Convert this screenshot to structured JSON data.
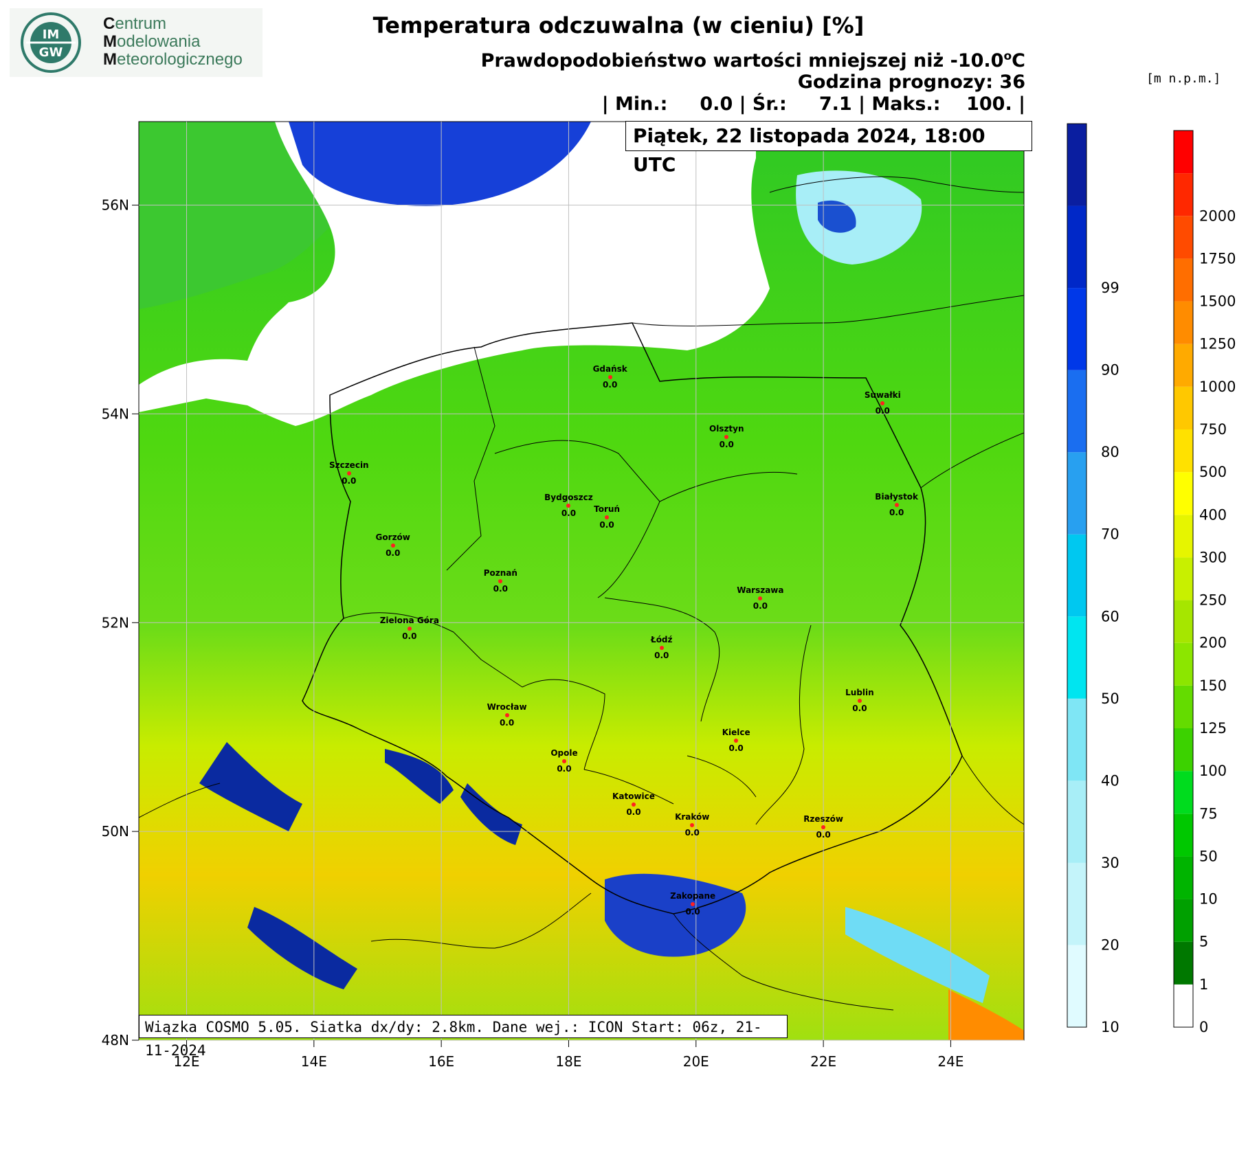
{
  "logo": {
    "badge_text_1": "IM",
    "badge_text_2": "GW",
    "line1_initial": "C",
    "line1_rest": "entrum",
    "line2_initial": "M",
    "line2_rest": "odelowania",
    "line3_initial": "M",
    "line3_rest": "eteorologicznego",
    "colors": {
      "background": "#f3f6f3",
      "text": "#3c7a5b",
      "badge": "#2f7a6a"
    }
  },
  "header": {
    "title": "Temperatura odczuwalna (w cieniu) [%]",
    "subtitle_prefix": "Prawdopodobieństwo wartości mniejszej niż -10.0",
    "subtitle_superscript": "o",
    "subtitle_suffix": "C",
    "forecast_hour": "Godzina prognozy: 36",
    "stats": "| Min.:     0.0 | Śr.:     7.1 | Maks.:    100. |",
    "date": "Piątek, 22 listopada 2024, 18:00 UTC"
  },
  "footer": "Wiązka COSMO 5.05. Siatka dx/dy: 2.8km. Dane wej.: ICON Start: 06z, 21-11-2024",
  "map": {
    "lat_range": [
      48,
      56.8
    ],
    "lon_range": [
      11.25,
      25.15
    ],
    "lat_labels": [
      "56N",
      "54N",
      "52N",
      "50N",
      "48N"
    ],
    "lon_labels": [
      "12E",
      "14E",
      "16E",
      "18E",
      "20E",
      "22E",
      "24E"
    ],
    "grid_color": "#c0c0c0",
    "cities": [
      {
        "name": "Gdańsk",
        "value": "0.0",
        "lon": 18.65,
        "lat": 54.35
      },
      {
        "name": "Suwałki",
        "value": "0.0",
        "lon": 22.93,
        "lat": 54.1
      },
      {
        "name": "Olsztyn",
        "value": "0.0",
        "lon": 20.48,
        "lat": 53.78
      },
      {
        "name": "Szczecin",
        "value": "0.0",
        "lon": 14.55,
        "lat": 53.43
      },
      {
        "name": "Bydgoszcz",
        "value": "0.0",
        "lon": 18.0,
        "lat": 53.12
      },
      {
        "name": "Toruń",
        "value": "0.0",
        "lon": 18.6,
        "lat": 53.01
      },
      {
        "name": "Białystok",
        "value": "0.0",
        "lon": 23.15,
        "lat": 53.13
      },
      {
        "name": "Gorzów",
        "value": "0.0",
        "lon": 15.24,
        "lat": 52.74
      },
      {
        "name": "Poznań",
        "value": "0.0",
        "lon": 16.93,
        "lat": 52.4
      },
      {
        "name": "Warszawa",
        "value": "0.0",
        "lon": 21.01,
        "lat": 52.23
      },
      {
        "name": "Zielona Góra",
        "value": "0.0",
        "lon": 15.5,
        "lat": 51.94
      },
      {
        "name": "Łódź",
        "value": "0.0",
        "lon": 19.46,
        "lat": 51.76
      },
      {
        "name": "Lublin",
        "value": "0.0",
        "lon": 22.57,
        "lat": 51.25
      },
      {
        "name": "Wrocław",
        "value": "0.0",
        "lon": 17.03,
        "lat": 51.11
      },
      {
        "name": "Kielce",
        "value": "0.0",
        "lon": 20.63,
        "lat": 50.87
      },
      {
        "name": "Opole",
        "value": "0.0",
        "lon": 17.93,
        "lat": 50.67
      },
      {
        "name": "Katowice",
        "value": "0.0",
        "lon": 19.02,
        "lat": 50.26
      },
      {
        "name": "Kraków",
        "value": "0.0",
        "lon": 19.94,
        "lat": 50.06
      },
      {
        "name": "Rzeszów",
        "value": "0.0",
        "lon": 22.0,
        "lat": 50.04
      },
      {
        "name": "Zakopane",
        "value": "0.0",
        "lon": 19.95,
        "lat": 49.3
      }
    ]
  },
  "colorbar_prob": {
    "labels": [
      "10",
      "20",
      "30",
      "40",
      "50",
      "60",
      "70",
      "80",
      "90",
      "99"
    ],
    "colors": [
      "#e0fbff",
      "#c4f4fa",
      "#a8eef7",
      "#7fe6f5",
      "#00e5f0",
      "#00c8f0",
      "#28a0f0",
      "#1a6ef0",
      "#0038e8",
      "#0028c8",
      "#0a1ea0"
    ]
  },
  "colorbar_height": {
    "unit": "[m n.p.m.]",
    "labels": [
      "0",
      "1",
      "5",
      "10",
      "50",
      "75",
      "100",
      "125",
      "150",
      "200",
      "250",
      "300",
      "400",
      "500",
      "750",
      "1000",
      "1250",
      "1500",
      "1750",
      "2000"
    ],
    "colors": [
      "#ffffff",
      "#007800",
      "#00a000",
      "#00b400",
      "#00c800",
      "#00dc1e",
      "#3cd200",
      "#64dc00",
      "#8ce600",
      "#a6e600",
      "#c8f000",
      "#e6f500",
      "#ffff00",
      "#ffe100",
      "#ffc800",
      "#ffaa00",
      "#ff8c00",
      "#ff6e00",
      "#ff4b00",
      "#ff2800",
      "#ff0000"
    ]
  }
}
